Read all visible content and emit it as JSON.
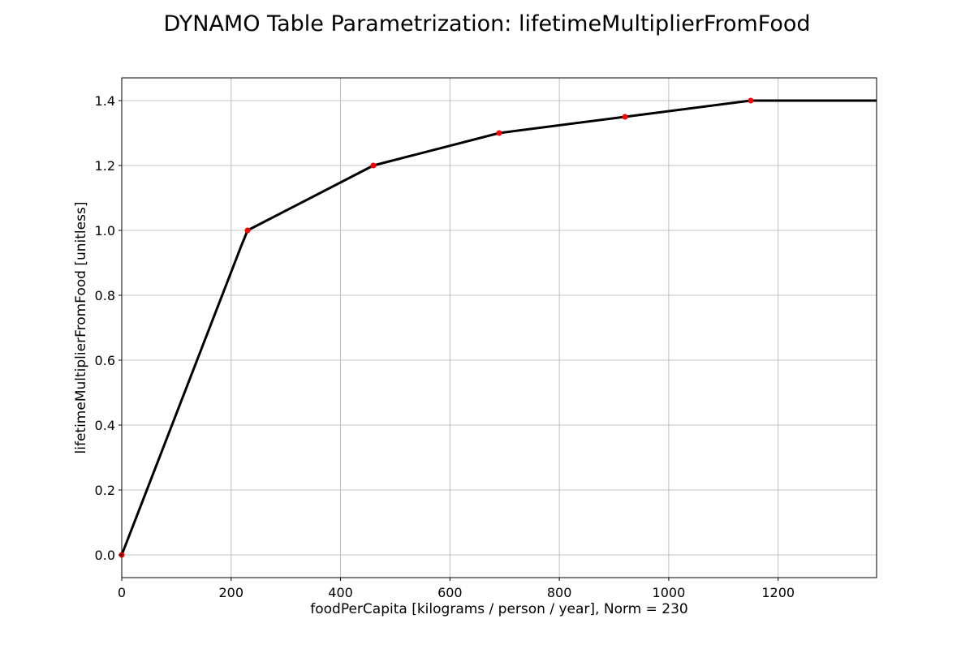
{
  "chart_data": {
    "type": "line",
    "title": "DYNAMO Table Parametrization: lifetimeMultiplierFromFood",
    "xlabel": "foodPerCapita [kilograms / person / year], Norm = 230",
    "ylabel": "lifetimeMultiplierFromFood [unitless]",
    "xlim": [
      0,
      1380
    ],
    "ylim": [
      -0.07,
      1.47
    ],
    "grid": true,
    "xticks": [
      0,
      200,
      400,
      600,
      800,
      1000,
      1200
    ],
    "yticks": [
      0.0,
      0.2,
      0.4,
      0.6,
      0.8,
      1.0,
      1.2,
      1.4
    ],
    "xtick_labels": [
      "0",
      "200",
      "400",
      "600",
      "800",
      "1000",
      "1200"
    ],
    "ytick_labels": [
      "0.0",
      "0.2",
      "0.4",
      "0.6",
      "0.8",
      "1.0",
      "1.2",
      "1.4"
    ],
    "series": [
      {
        "style": "black-line",
        "color": "#000000",
        "x": [
          0,
          218,
          224,
          230,
          460,
          690,
          920,
          1150,
          1380
        ],
        "y": [
          0.0,
          0.95,
          0.975,
          1.0,
          1.2,
          1.3,
          1.35,
          1.4,
          1.4
        ]
      },
      {
        "style": "red-points",
        "color": "#ff0000",
        "x": [
          0,
          230,
          460,
          690,
          920,
          1150
        ],
        "y": [
          0.0,
          1.0,
          1.2,
          1.3,
          1.35,
          1.4
        ]
      }
    ]
  }
}
